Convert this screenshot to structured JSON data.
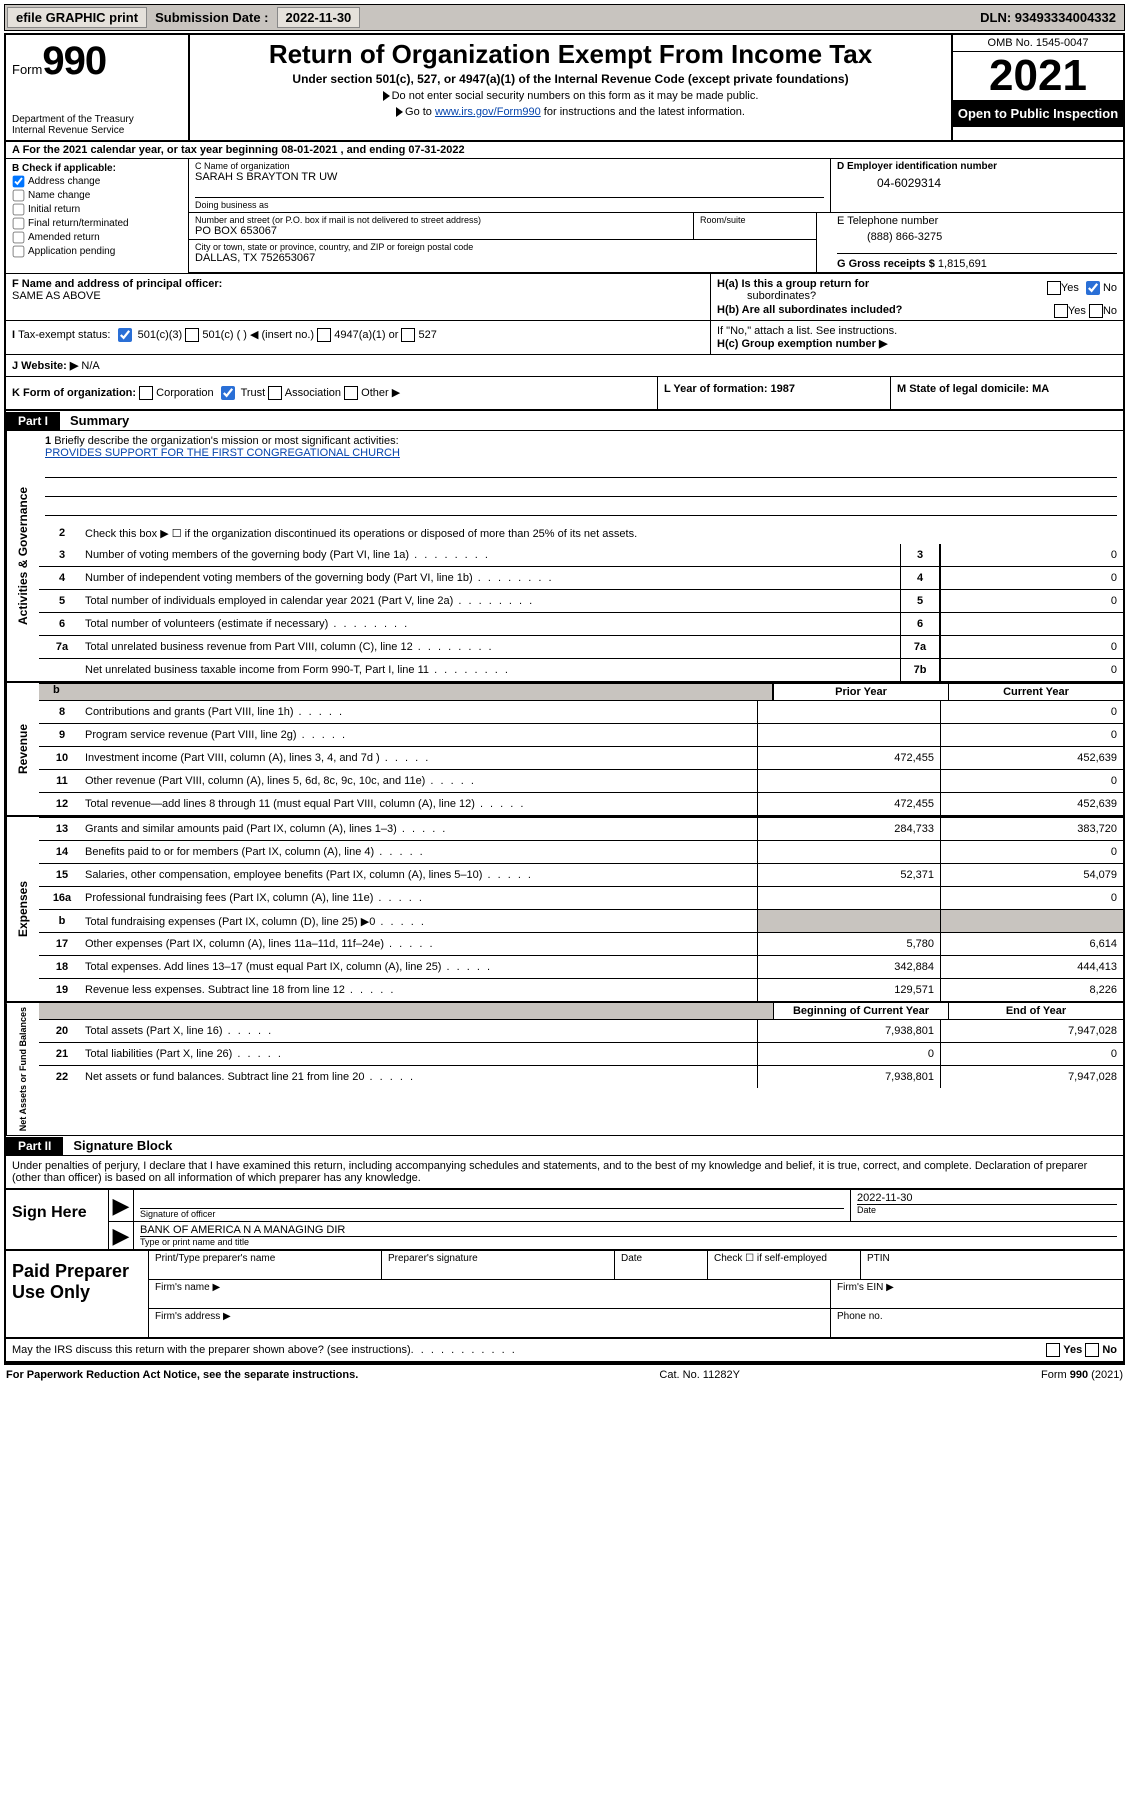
{
  "topbar": {
    "efile": "efile GRAPHIC print",
    "subLabel": "Submission Date :",
    "subDate": "2022-11-30",
    "dln": "DLN: 93493334004332"
  },
  "header": {
    "formWord": "Form",
    "formNum": "990",
    "dept": "Department of the Treasury",
    "irs": "Internal Revenue Service",
    "title": "Return of Organization Exempt From Income Tax",
    "sub": "Under section 501(c), 527, or 4947(a)(1) of the Internal Revenue Code (except private foundations)",
    "note1": "Do not enter social security numbers on this form as it may be made public.",
    "note2a": "Go to ",
    "note2link": "www.irs.gov/Form990",
    "note2b": " for instructions and the latest information.",
    "omb": "OMB No. 1545-0047",
    "year": "2021",
    "open": "Open to Public Inspection"
  },
  "rowA": {
    "text": "A For the 2021 calendar year, or tax year beginning 08-01-2021   , and ending 07-31-2022"
  },
  "colB": {
    "head": "B Check if applicable:",
    "items": [
      "Address change",
      "Name change",
      "Initial return",
      "Final return/terminated",
      "Amended return",
      "Application pending"
    ],
    "checked": [
      true,
      false,
      false,
      false,
      false,
      false
    ]
  },
  "colC": {
    "nameLab": "C Name of organization",
    "name": "SARAH S BRAYTON TR UW",
    "dbaLab": "Doing business as",
    "dba": "",
    "streetLab": "Number and street (or P.O. box if mail is not delivered to street address)",
    "street": "PO BOX 653067",
    "suiteLab": "Room/suite",
    "cityLab": "City or town, state or province, country, and ZIP or foreign postal code",
    "city": "DALLAS, TX  752653067"
  },
  "colD": {
    "lab": "D Employer identification number",
    "val": "04-6029314"
  },
  "colE": {
    "lab": "E Telephone number",
    "val": "(888) 866-3275"
  },
  "colG": {
    "lab": "G Gross receipts $",
    "val": "1,815,691"
  },
  "rowF": {
    "lab": "F Name and address of principal officer:",
    "val": "SAME AS ABOVE"
  },
  "rowH": {
    "a": "H(a)  Is this a group return for",
    "a2": "subordinates?",
    "b": "H(b)  Are all subordinates included?",
    "bnote": "If \"No,\" attach a list. See instructions.",
    "c": "H(c)  Group exemption number ▶",
    "yes": "Yes",
    "no": "No"
  },
  "rowI": {
    "lab": "Tax-exempt status:",
    "o1": "501(c)(3)",
    "o2": "501(c) (  ) ◀ (insert no.)",
    "o3": "4947(a)(1) or",
    "o4": "527"
  },
  "rowJ": {
    "lab": "J   Website: ▶",
    "val": "N/A"
  },
  "rowK": {
    "lab": "K Form of organization:",
    "o1": "Corporation",
    "o2": "Trust",
    "o3": "Association",
    "o4": "Other ▶"
  },
  "rowL": {
    "text": "L Year of formation: 1987"
  },
  "rowM": {
    "text": "M State of legal domicile: MA"
  },
  "part1": {
    "hdr": "Part I",
    "title": "Summary"
  },
  "briefly": {
    "num": "1",
    "lab": "Briefly describe the organization's mission or most significant activities:",
    "val": "PROVIDES SUPPORT FOR THE FIRST CONGREGATIONAL CHURCH"
  },
  "ln2": {
    "num": "2",
    "desc": "Check this box ▶ ☐  if the organization discontinued its operations or disposed of more than 25% of its net assets."
  },
  "summary": [
    {
      "num": "3",
      "desc": "Number of voting members of the governing body (Part VI, line 1a)",
      "key": "3",
      "val": "0"
    },
    {
      "num": "4",
      "desc": "Number of independent voting members of the governing body (Part VI, line 1b)",
      "key": "4",
      "val": "0"
    },
    {
      "num": "5",
      "desc": "Total number of individuals employed in calendar year 2021 (Part V, line 2a)",
      "key": "5",
      "val": "0"
    },
    {
      "num": "6",
      "desc": "Total number of volunteers (estimate if necessary)",
      "key": "6",
      "val": ""
    },
    {
      "num": "7a",
      "desc": "Total unrelated business revenue from Part VIII, column (C), line 12",
      "key": "7a",
      "val": "0"
    },
    {
      "num": "",
      "desc": "Net unrelated business taxable income from Form 990-T, Part I, line 11",
      "key": "7b",
      "val": "0"
    }
  ],
  "yearHdr": {
    "b": "b",
    "prior": "Prior Year",
    "curr": "Current Year"
  },
  "revenue": [
    {
      "num": "8",
      "desc": "Contributions and grants (Part VIII, line 1h)",
      "p": "",
      "c": "0"
    },
    {
      "num": "9",
      "desc": "Program service revenue (Part VIII, line 2g)",
      "p": "",
      "c": "0"
    },
    {
      "num": "10",
      "desc": "Investment income (Part VIII, column (A), lines 3, 4, and 7d )",
      "p": "472,455",
      "c": "452,639"
    },
    {
      "num": "11",
      "desc": "Other revenue (Part VIII, column (A), lines 5, 6d, 8c, 9c, 10c, and 11e)",
      "p": "",
      "c": "0"
    },
    {
      "num": "12",
      "desc": "Total revenue—add lines 8 through 11 (must equal Part VIII, column (A), line 12)",
      "p": "472,455",
      "c": "452,639"
    }
  ],
  "expenses": [
    {
      "num": "13",
      "desc": "Grants and similar amounts paid (Part IX, column (A), lines 1–3)",
      "p": "284,733",
      "c": "383,720"
    },
    {
      "num": "14",
      "desc": "Benefits paid to or for members (Part IX, column (A), line 4)",
      "p": "",
      "c": "0"
    },
    {
      "num": "15",
      "desc": "Salaries, other compensation, employee benefits (Part IX, column (A), lines 5–10)",
      "p": "52,371",
      "c": "54,079"
    },
    {
      "num": "16a",
      "desc": "Professional fundraising fees (Part IX, column (A), line 11e)",
      "p": "",
      "c": "0"
    },
    {
      "num": "b",
      "desc": "Total fundraising expenses (Part IX, column (D), line 25) ▶0",
      "p": "GREY",
      "c": "GREY"
    },
    {
      "num": "17",
      "desc": "Other expenses (Part IX, column (A), lines 11a–11d, 11f–24e)",
      "p": "5,780",
      "c": "6,614"
    },
    {
      "num": "18",
      "desc": "Total expenses. Add lines 13–17 (must equal Part IX, column (A), line 25)",
      "p": "342,884",
      "c": "444,413"
    },
    {
      "num": "19",
      "desc": "Revenue less expenses. Subtract line 18 from line 12",
      "p": "129,571",
      "c": "8,226"
    }
  ],
  "balHdr": {
    "beg": "Beginning of Current Year",
    "end": "End of Year"
  },
  "balances": [
    {
      "num": "20",
      "desc": "Total assets (Part X, line 16)",
      "p": "7,938,801",
      "c": "7,947,028"
    },
    {
      "num": "21",
      "desc": "Total liabilities (Part X, line 26)",
      "p": "0",
      "c": "0"
    },
    {
      "num": "22",
      "desc": "Net assets or fund balances. Subtract line 21 from line 20",
      "p": "7,938,801",
      "c": "7,947,028"
    }
  ],
  "part2": {
    "hdr": "Part II",
    "title": "Signature Block"
  },
  "decl": "Under penalties of perjury, I declare that I have examined this return, including accompanying schedules and statements, and to the best of my knowledge and belief, it is true, correct, and complete. Declaration of preparer (other than officer) is based on all information of which preparer has any knowledge.",
  "sign": {
    "here": "Sign Here",
    "sigOff": "Signature of officer",
    "date": "Date",
    "dateVal": "2022-11-30",
    "name": "BANK OF AMERICA N A  MANAGING DIR",
    "nameLab": "Type or print name and title"
  },
  "paid": {
    "title": "Paid Preparer Use Only",
    "h1": "Print/Type preparer's name",
    "h2": "Preparer's signature",
    "h3": "Date",
    "h4": "Check ☐ if self-employed",
    "h5": "PTIN",
    "firmName": "Firm's name   ▶",
    "firmEIN": "Firm's EIN ▶",
    "firmAddr": "Firm's address ▶",
    "phone": "Phone no."
  },
  "may": {
    "text": "May the IRS discuss this return with the preparer shown above? (see instructions)",
    "yes": "Yes",
    "no": "No"
  },
  "footer": {
    "l": "For Paperwork Reduction Act Notice, see the separate instructions.",
    "m": "Cat. No. 11282Y",
    "r": "Form 990 (2021)"
  },
  "sideLabels": {
    "gov": "Activities & Governance",
    "rev": "Revenue",
    "exp": "Expenses",
    "bal": "Net Assets or Fund Balances"
  }
}
